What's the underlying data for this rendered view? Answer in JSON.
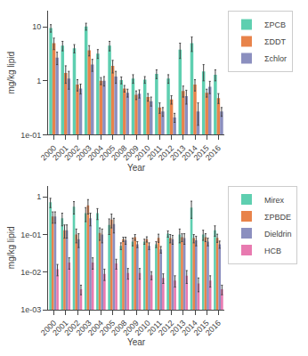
{
  "chart_data": [
    {
      "type": "bar",
      "xlabel": "Year",
      "ylabel": "mg/kg lipid",
      "categories": [
        "2000",
        "2001",
        "2002",
        "2003",
        "2004",
        "2005",
        "2008",
        "2009",
        "2010",
        "2011",
        "2012",
        "2013",
        "2014",
        "2015",
        "2016"
      ],
      "series": [
        {
          "name": "ΣPCB",
          "color": "#5ecfb0",
          "values": [
            9.5,
            4.5,
            4.0,
            10.2,
            3.2,
            4.5,
            1.03,
            1.1,
            1.05,
            1.35,
            1.1,
            3.8,
            5.0,
            1.5,
            1.3
          ],
          "errors": [
            1.5,
            0.9,
            0.7,
            1.5,
            0.6,
            0.9,
            0.15,
            0.2,
            0.15,
            0.25,
            0.2,
            1.2,
            1.5,
            0.5,
            0.3
          ]
        },
        {
          "name": "ΣDDT",
          "color": "#e8834a",
          "values": [
            5.0,
            1.4,
            0.85,
            3.7,
            1.0,
            1.9,
            0.72,
            0.55,
            0.5,
            0.32,
            0.45,
            0.65,
            0.85,
            0.6,
            0.48
          ],
          "errors": [
            1.2,
            0.5,
            0.2,
            0.8,
            0.15,
            0.5,
            0.1,
            0.1,
            0.08,
            0.07,
            0.08,
            0.15,
            0.2,
            0.1,
            0.1
          ]
        },
        {
          "name": "Σchlor",
          "color": "#8b8fbf",
          "values": [
            2.7,
            1.1,
            0.72,
            2.0,
            1.0,
            1.2,
            0.6,
            0.58,
            0.42,
            0.27,
            0.21,
            0.52,
            0.27,
            0.78,
            0.27
          ],
          "errors": [
            0.7,
            0.4,
            0.15,
            0.5,
            0.2,
            0.3,
            0.1,
            0.1,
            0.08,
            0.05,
            0.04,
            0.15,
            0.12,
            0.2,
            0.05
          ]
        }
      ],
      "log": "y",
      "ylim": [
        0.1,
        20
      ],
      "yticks": [
        {
          "value": 0.1,
          "label": "1e-01"
        },
        1,
        10
      ],
      "grid": false,
      "legend": "upper right"
    },
    {
      "type": "bar",
      "xlabel": "Year",
      "ylabel": "mg/kg lipid",
      "categories": [
        "2000",
        "2001",
        "2002",
        "2003",
        "2004",
        "2005",
        "2008",
        "2009",
        "2010",
        "2011",
        "2012",
        "2013",
        "2014",
        "2015",
        "2016"
      ],
      "series": [
        {
          "name": "Mirex",
          "color": "#5ecfb0",
          "values": [
            0.72,
            0.27,
            0.55,
            0.37,
            0.37,
            0.18,
            0.05,
            0.065,
            0.065,
            0.055,
            0.105,
            0.1,
            0.52,
            0.1,
            0.13
          ],
          "errors": [
            0.2,
            0.1,
            0.2,
            0.15,
            0.12,
            0.08,
            0.01,
            0.015,
            0.01,
            0.01,
            0.02,
            0.04,
            0.25,
            0.03,
            0.04
          ]
        },
        {
          "name": "ΣPBDE",
          "color": "#e8834a",
          "values": [
            0.3,
            0.13,
            0.1,
            0.6,
            0.11,
            0.25,
            0.075,
            0.085,
            0.075,
            0.082,
            0.08,
            0.085,
            0.08,
            0.085,
            0.082
          ],
          "errors": [
            0.1,
            0.05,
            0.04,
            0.25,
            0.04,
            0.1,
            0.01,
            0.015,
            0.012,
            0.02,
            0.02,
            0.02,
            0.02,
            0.02,
            0.02
          ]
        },
        {
          "name": "Dieldrin",
          "color": "#8b8fbf",
          "values": [
            0.3,
            0.13,
            0.075,
            0.27,
            0.1,
            0.19,
            0.07,
            0.055,
            0.05,
            0.04,
            0.075,
            0.08,
            0.07,
            0.065,
            0.055
          ],
          "errors": [
            0.1,
            0.05,
            0.03,
            0.1,
            0.04,
            0.08,
            0.015,
            0.01,
            0.01,
            0.008,
            0.02,
            0.025,
            0.02,
            0.015,
            0.012
          ]
        },
        {
          "name": "HCB",
          "color": "#e87ab0",
          "values": [
            0.012,
            0.018,
            0.0035,
            0.018,
            0.009,
            0.017,
            0.0095,
            0.0095,
            0.0083,
            0.007,
            0.006,
            0.008,
            0.005,
            0.006,
            0.0035
          ],
          "errors": [
            0.004,
            0.006,
            0.001,
            0.006,
            0.003,
            0.005,
            0.003,
            0.003,
            0.002,
            0.002,
            0.002,
            0.003,
            0.002,
            0.002,
            0.001
          ]
        }
      ],
      "log": "y",
      "ylim": [
        0.001,
        2
      ],
      "yticks": [
        {
          "value": 0.001,
          "label": "1e-03"
        },
        {
          "value": 0.01,
          "label": "1e-02"
        },
        {
          "value": 0.1,
          "label": "1e-01"
        },
        1
      ],
      "grid": false,
      "legend": "upper right"
    }
  ]
}
